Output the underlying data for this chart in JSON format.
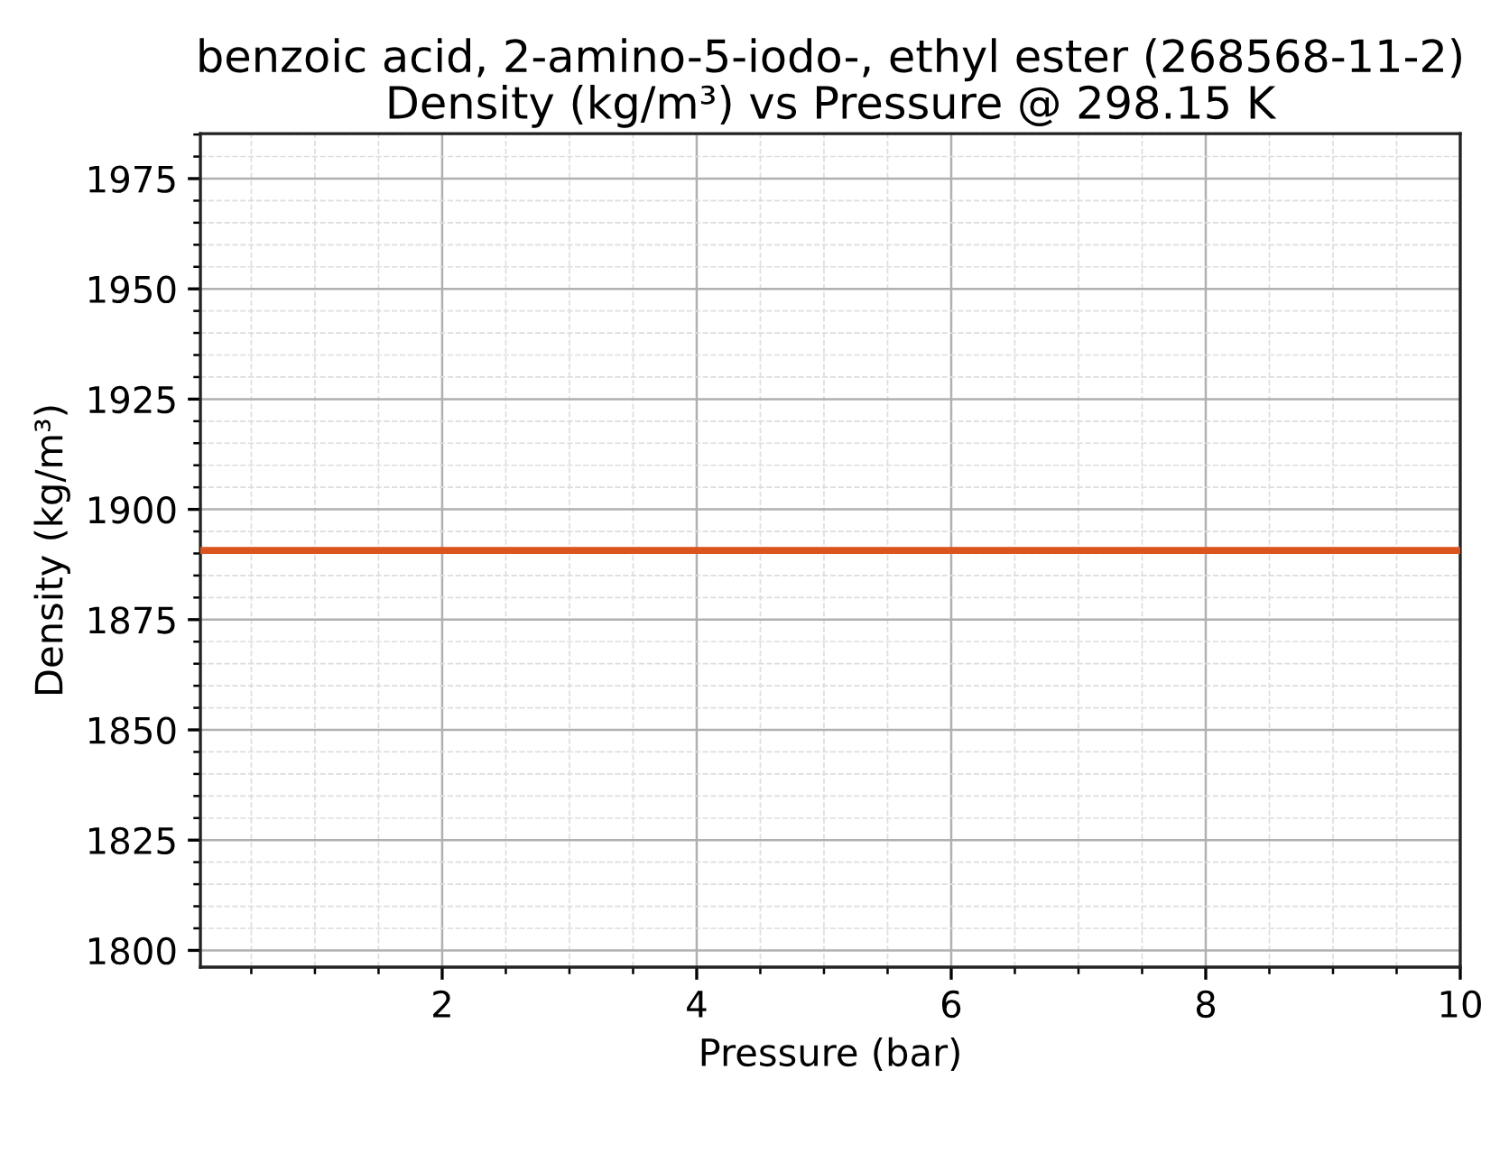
{
  "chart_data": {
    "type": "line",
    "title": "benzoic acid, 2-amino-5-iodo-, ethyl ester (268568-11-2)\nDensity (kg/m³) vs Pressure @ 298.15 K",
    "xlabel": "Pressure (bar)",
    "ylabel": "Density (kg/m³)",
    "series": [
      {
        "color": "#d9541e",
        "x": [
          0.1,
          10
        ],
        "values": [
          1890.7,
          1890.7
        ]
      }
    ],
    "xlim": [
      0.1,
      10
    ],
    "xticks": [
      2,
      4,
      6,
      8,
      10
    ],
    "ylim": [
      1796.2,
      1985.2
    ],
    "yticks": [
      1800,
      1825,
      1850,
      1875,
      1900,
      1925,
      1950,
      1975
    ],
    "grid": true,
    "line_style": "solid"
  }
}
